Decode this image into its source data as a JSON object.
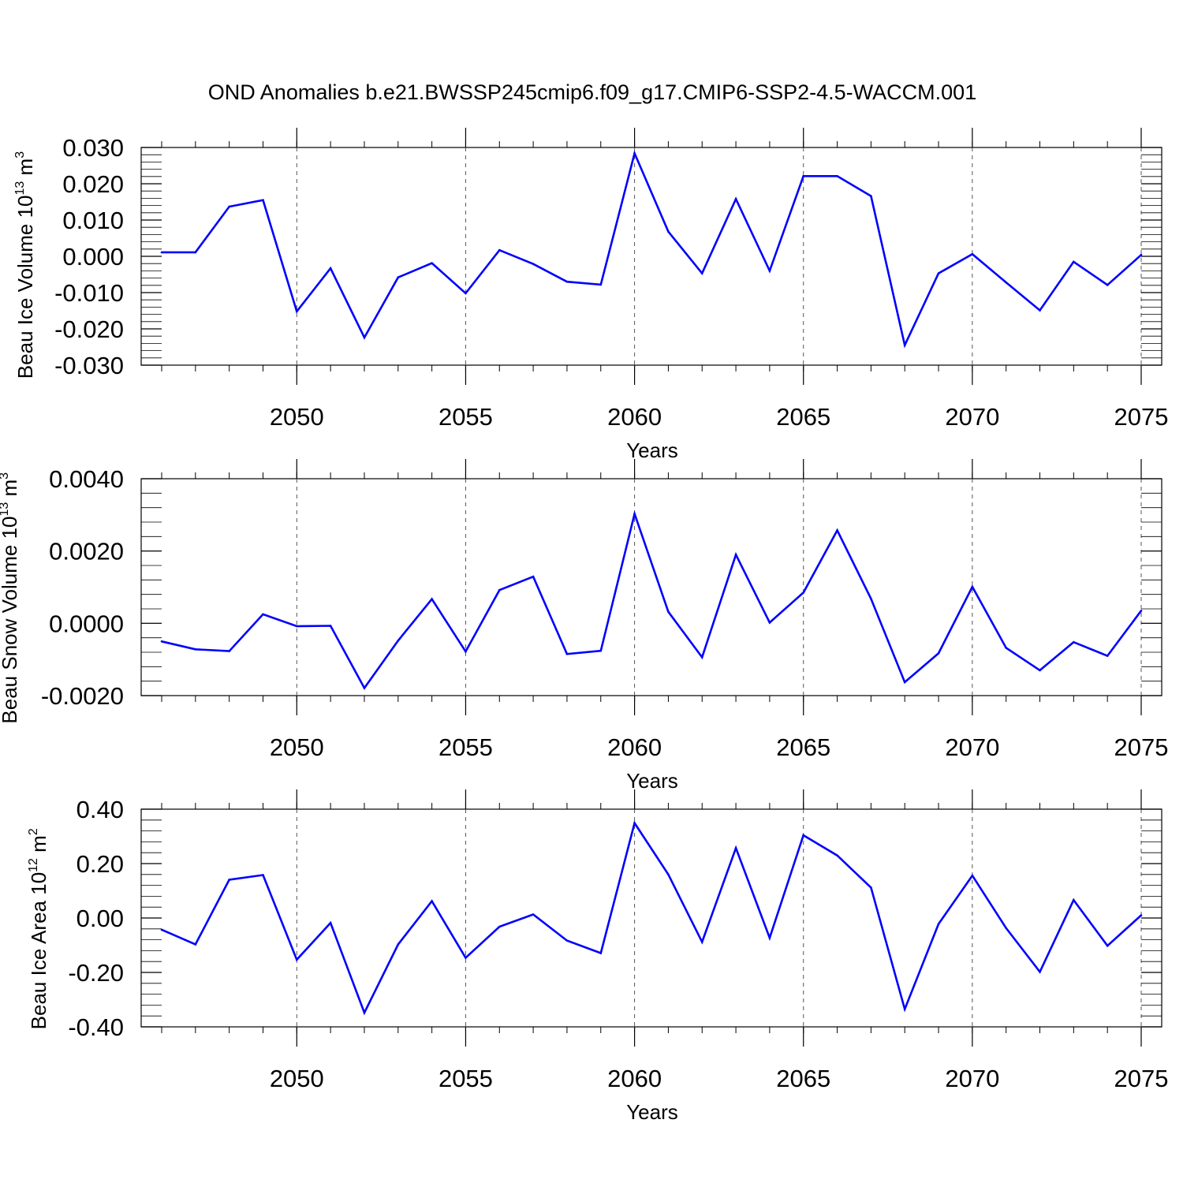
{
  "title": "OND Anomalies b.e21.BWSSP245cmip6.f09_g17.CMIP6-SSP2-4.5-WACCM.001",
  "line_color": "#0000ff",
  "chart_data": [
    {
      "type": "line",
      "ylabel": "Beau Ice Volume 10",
      "ylabel_exp": "13",
      "ylabel_unit": " m",
      "ylabel_unit_exp": "3",
      "xlabel": "Years",
      "xlim": [
        2046,
        2075
      ],
      "ylim": [
        -0.03,
        0.03
      ],
      "yticks": [
        -0.03,
        -0.02,
        -0.01,
        0.0,
        0.01,
        0.02,
        0.03
      ],
      "ytick_labels": [
        "-0.030",
        "-0.020",
        "-0.010",
        "0.000",
        "0.010",
        "0.020",
        "0.030"
      ],
      "xticks": [
        2050,
        2055,
        2060,
        2065,
        2070,
        2075
      ],
      "xtick_labels": [
        "2050",
        "2055",
        "2060",
        "2065",
        "2070",
        "2075"
      ],
      "x": [
        2046,
        2047,
        2048,
        2049,
        2050,
        2051,
        2052,
        2053,
        2054,
        2055,
        2056,
        2057,
        2058,
        2059,
        2060,
        2061,
        2062,
        2063,
        2064,
        2065,
        2066,
        2067,
        2068,
        2069,
        2070,
        2071,
        2072,
        2073,
        2074,
        2075
      ],
      "values": [
        0.0011,
        0.0011,
        0.0137,
        0.0155,
        -0.0152,
        -0.0033,
        -0.0224,
        -0.0058,
        -0.0019,
        -0.0102,
        0.0017,
        -0.0021,
        -0.007,
        -0.0078,
        0.0284,
        0.0068,
        -0.0047,
        0.0158,
        -0.004,
        0.0221,
        0.0221,
        0.0166,
        -0.0245,
        -0.0047,
        0.0006,
        -0.0072,
        -0.0149,
        -0.0015,
        -0.0079,
        0.0004
      ]
    },
    {
      "type": "line",
      "ylabel": "Beau Snow Volume 10",
      "ylabel_exp": "13",
      "ylabel_unit": " m",
      "ylabel_unit_exp": "3",
      "xlabel": "Years",
      "xlim": [
        2046,
        2075
      ],
      "ylim": [
        -0.002,
        0.004
      ],
      "yticks": [
        -0.002,
        0.0,
        0.002,
        0.004
      ],
      "ytick_labels": [
        "-0.0020",
        "0.0000",
        "0.0020",
        "0.0040"
      ],
      "xticks": [
        2050,
        2055,
        2060,
        2065,
        2070,
        2075
      ],
      "xtick_labels": [
        "2050",
        "2055",
        "2060",
        "2065",
        "2070",
        "2075"
      ],
      "x": [
        2046,
        2047,
        2048,
        2049,
        2050,
        2051,
        2052,
        2053,
        2054,
        2055,
        2056,
        2057,
        2058,
        2059,
        2060,
        2061,
        2062,
        2063,
        2064,
        2065,
        2066,
        2067,
        2068,
        2069,
        2070,
        2071,
        2072,
        2073,
        2074,
        2075
      ],
      "values": [
        -0.0005,
        -0.00072,
        -0.00077,
        0.00025,
        -8e-05,
        -7e-05,
        -0.00179,
        -0.00048,
        0.00067,
        -0.00078,
        0.00092,
        0.00129,
        -0.00085,
        -0.00076,
        0.00303,
        0.00032,
        -0.00094,
        0.0019,
        2e-05,
        0.00085,
        0.00257,
        0.00068,
        -0.00163,
        -0.00083,
        0.00101,
        -0.00068,
        -0.0013,
        -0.00052,
        -0.0009,
        0.00035
      ]
    },
    {
      "type": "line",
      "ylabel": "Beau Ice Area 10",
      "ylabel_exp": "12",
      "ylabel_unit": " m",
      "ylabel_unit_exp": "2",
      "xlabel": "Years",
      "xlim": [
        2046,
        2075
      ],
      "ylim": [
        -0.4,
        0.4
      ],
      "yticks": [
        -0.4,
        -0.2,
        0.0,
        0.2,
        0.4
      ],
      "ytick_labels": [
        "-0.40",
        "-0.20",
        "0.00",
        "0.20",
        "0.40"
      ],
      "xticks": [
        2050,
        2055,
        2060,
        2065,
        2070,
        2075
      ],
      "xtick_labels": [
        "2050",
        "2055",
        "2060",
        "2065",
        "2070",
        "2075"
      ],
      "x": [
        2046,
        2047,
        2048,
        2049,
        2050,
        2051,
        2052,
        2053,
        2054,
        2055,
        2056,
        2057,
        2058,
        2059,
        2060,
        2061,
        2062,
        2063,
        2064,
        2065,
        2066,
        2067,
        2068,
        2069,
        2070,
        2071,
        2072,
        2073,
        2074,
        2075
      ],
      "values": [
        -0.043,
        -0.097,
        0.141,
        0.158,
        -0.153,
        -0.018,
        -0.348,
        -0.097,
        0.062,
        -0.146,
        -0.032,
        0.013,
        -0.083,
        -0.129,
        0.349,
        0.16,
        -0.088,
        0.257,
        -0.073,
        0.304,
        0.23,
        0.112,
        -0.335,
        -0.022,
        0.156,
        -0.037,
        -0.198,
        0.066,
        -0.102,
        0.01
      ]
    }
  ]
}
